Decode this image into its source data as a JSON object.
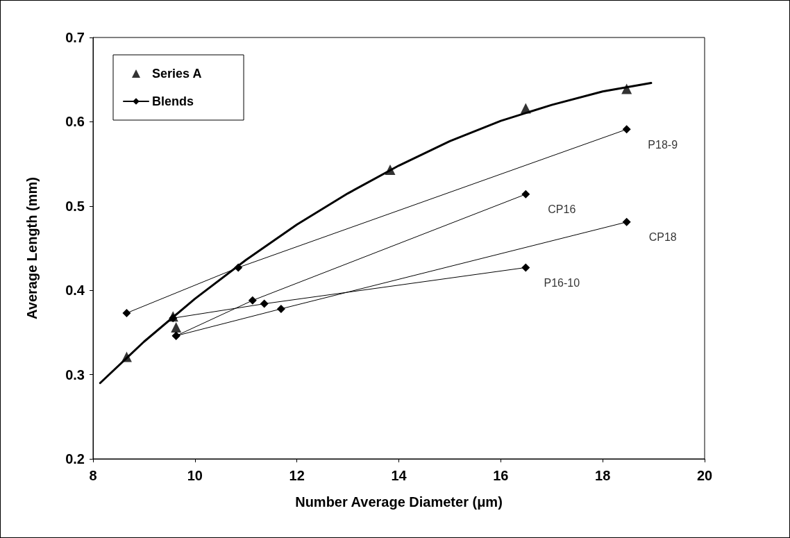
{
  "chart_data": {
    "type": "scatter",
    "xlabel": "Number Average Diameter (μm)",
    "ylabel": "Average Length (mm)",
    "xlim": [
      8,
      20
    ],
    "xticks": [
      8,
      10,
      12,
      14,
      16,
      18,
      20
    ],
    "ylim": [
      0.2,
      0.7
    ],
    "yticks": [
      0.2,
      0.3,
      0.4,
      0.5,
      0.6,
      0.7
    ],
    "grid": false,
    "legend": "top left",
    "series": [
      {
        "type": "line",
        "color": "#000000",
        "marker": "none",
        "x": [
          8.14,
          9,
          10,
          11,
          12,
          13,
          14,
          15,
          16,
          17,
          18,
          18.95
        ],
        "values": [
          0.29,
          0.339,
          0.39,
          0.436,
          0.478,
          0.515,
          0.548,
          0.577,
          0.601,
          0.62,
          0.636,
          0.646
        ]
      },
      {
        "name": "Series A",
        "color": "#000000",
        "marker": "triangle",
        "x": [
          8.66,
          9.57,
          9.63,
          13.83,
          16.49,
          18.47
        ],
        "values": [
          0.321,
          0.369,
          0.356,
          0.543,
          0.616,
          0.639
        ]
      },
      {
        "name": "Blends",
        "type": "line",
        "color": "#000000",
        "marker": "diamond",
        "x": [
          8.66,
          10.85,
          18.47
        ],
        "values": [
          0.373,
          0.427,
          0.591
        ]
      },
      {
        "type": "line",
        "color": "#000000",
        "marker": "diamond",
        "x": [
          9.63,
          11.13,
          16.49
        ],
        "values": [
          0.346,
          0.388,
          0.514
        ]
      },
      {
        "type": "line",
        "color": "#000000",
        "marker": "diamond",
        "x": [
          9.63,
          11.69,
          18.47
        ],
        "values": [
          0.346,
          0.378,
          0.481
        ]
      },
      {
        "type": "line",
        "color": "#000000",
        "marker": "diamond",
        "x": [
          9.57,
          11.36,
          16.49
        ],
        "values": [
          0.367,
          0.384,
          0.427
        ]
      }
    ],
    "annotations": [
      "P18-9",
      "CP16",
      "CP18",
      "P16-10"
    ]
  }
}
